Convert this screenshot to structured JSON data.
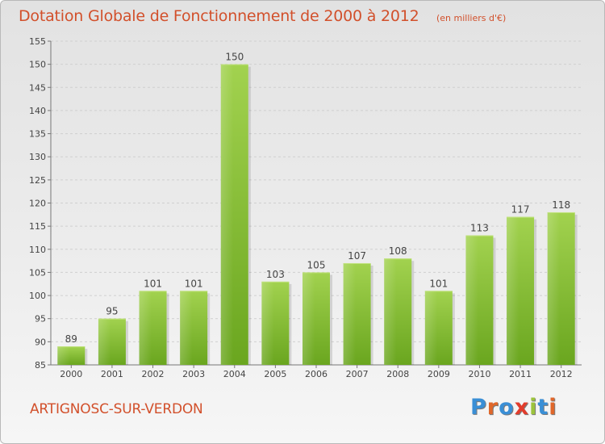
{
  "header": {
    "title": "Dotation Globale de Fonctionnement de 2000 à 2012",
    "subtitle": "(en milliers d'€)"
  },
  "footer": {
    "commune": "ARTIGNOSC-SUR-VERDON",
    "logo": {
      "text": "Proxiti",
      "colors": [
        "#3a8fd6",
        "#e0672a",
        "#3a8fd6",
        "#e23c2c",
        "#9cc33c",
        "#3a8fd6",
        "#e0672a"
      ]
    }
  },
  "chart_data": {
    "type": "bar",
    "categories": [
      "2000",
      "2001",
      "2002",
      "2003",
      "2004",
      "2005",
      "2006",
      "2007",
      "2008",
      "2009",
      "2010",
      "2011",
      "2012"
    ],
    "values": [
      89,
      95,
      101,
      101,
      150,
      103,
      105,
      107,
      108,
      101,
      113,
      117,
      118
    ],
    "title": "Dotation Globale de Fonctionnement de 2000 à 2012",
    "subtitle": "(en milliers d'€)",
    "xlabel": "",
    "ylabel": "",
    "ylim": [
      85,
      155
    ],
    "yticks": [
      85,
      90,
      95,
      100,
      105,
      110,
      115,
      120,
      125,
      130,
      135,
      140,
      145,
      150,
      155
    ],
    "grid": true,
    "bar_color": "#7fba32",
    "bar_color_light": "#9fd04f"
  }
}
